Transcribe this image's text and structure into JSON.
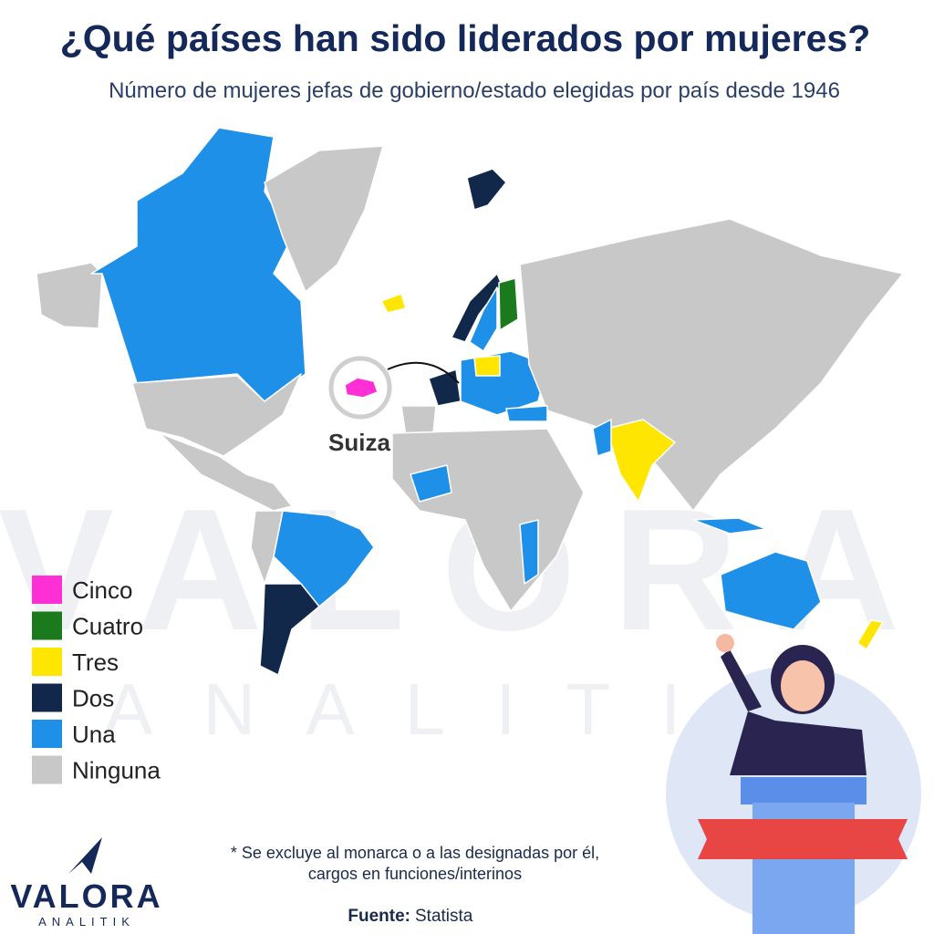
{
  "header": {
    "title": "¿Qué países han sido liderados por mujeres?",
    "subtitle": "Número de mujeres jefas de gobierno/estado elegidas por país desde 1946"
  },
  "legend": [
    {
      "label": "Cinco",
      "color": "#ff2fd6"
    },
    {
      "label": "Cuatro",
      "color": "#1b7a1b"
    },
    {
      "label": "Tres",
      "color": "#ffe600"
    },
    {
      "label": "Dos",
      "color": "#11284a"
    },
    {
      "label": "Una",
      "color": "#1e90e8"
    },
    {
      "label": "Ninguna",
      "color": "#c8c8c8"
    }
  ],
  "callout": "Suiza",
  "watermark": {
    "brand": "VALORA",
    "sub": "ANALITIK"
  },
  "footnote": [
    "* Se excluye al monarca o a las designadas por él,",
    "cargos en funciones/interinos"
  ],
  "source": {
    "label": "Fuente:",
    "text": "Statista"
  },
  "logo": {
    "brand": "VALORA",
    "sub": "ANALITIK"
  }
}
